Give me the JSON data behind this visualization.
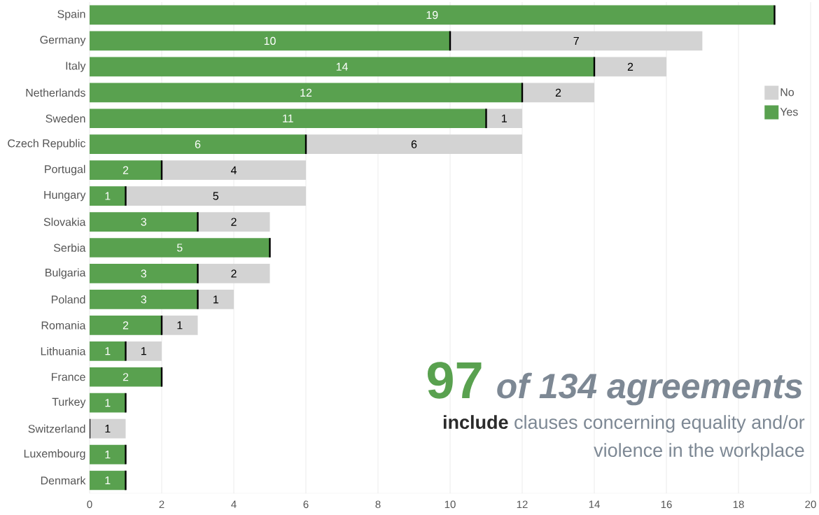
{
  "chart_data": {
    "type": "bar",
    "orientation": "horizontal",
    "stacked": true,
    "categories": [
      "Spain",
      "Germany",
      "Italy",
      "Netherlands",
      "Sweden",
      "Czech Republic",
      "Portugal",
      "Hungary",
      "Slovakia",
      "Serbia",
      "Bulgaria",
      "Poland",
      "Romania",
      "Lithuania",
      "France",
      "Turkey",
      "Switzerland",
      "Luxembourg",
      "Denmark"
    ],
    "series": [
      {
        "name": "Yes",
        "color": "#59a14f",
        "values": [
          19,
          10,
          14,
          12,
          11,
          6,
          2,
          1,
          3,
          5,
          3,
          3,
          2,
          1,
          2,
          1,
          0,
          1,
          1
        ],
        "value_labels": [
          "19",
          "10",
          "14",
          "12",
          "11",
          "6",
          "2",
          "1",
          "3",
          "5",
          "3",
          "3",
          "2",
          "1",
          "2",
          "1",
          null,
          "1",
          "1"
        ]
      },
      {
        "name": "No",
        "color": "#d3d3d3",
        "values": [
          0,
          7,
          2,
          2,
          1,
          6,
          4,
          5,
          2,
          0,
          2,
          1,
          1,
          1,
          0,
          0,
          1,
          0,
          0
        ],
        "value_labels": [
          null,
          "7",
          "2",
          "2",
          "1",
          "6",
          "4",
          "5",
          "2",
          null,
          "2",
          "1",
          "1",
          "1",
          null,
          null,
          "1",
          null,
          null
        ]
      }
    ],
    "xlim": [
      0,
      20
    ],
    "xticks": [
      0,
      2,
      4,
      6,
      8,
      10,
      12,
      14,
      16,
      18,
      20
    ],
    "grid": "x",
    "legend": "top right",
    "annotations": [
      "97",
      "of 134 agreements",
      "include",
      "clauses concerning equality and/or violence in the workplace"
    ]
  }
}
